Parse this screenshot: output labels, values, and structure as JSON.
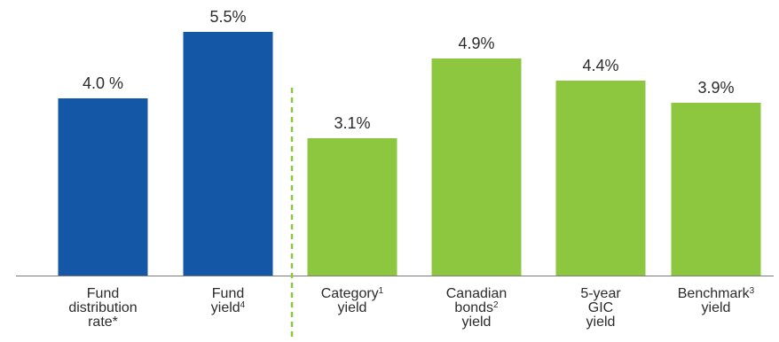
{
  "chart_data": {
    "type": "bar",
    "title": "",
    "xlabel": "",
    "ylabel": "",
    "ylim": [
      0,
      6
    ],
    "grid": false,
    "legend": "none",
    "categories": [
      {
        "lines": [
          "Fund",
          "distribution",
          "rate*"
        ],
        "sup": ""
      },
      {
        "lines": [
          "Fund",
          "yield"
        ],
        "sup": "4"
      },
      {
        "lines": [
          "Category",
          "yield"
        ],
        "sup": "1"
      },
      {
        "lines": [
          "Canadian",
          "bonds",
          "yield"
        ],
        "sup": "2"
      },
      {
        "lines": [
          "5-year",
          "GIC",
          "yield"
        ],
        "sup": ""
      },
      {
        "lines": [
          "Benchmark",
          "yield"
        ],
        "sup": "3"
      }
    ],
    "values": [
      4.0,
      5.5,
      3.1,
      4.9,
      4.4,
      3.9
    ],
    "value_labels": [
      "4.0 %",
      "5.5%",
      "3.1%",
      "4.9%",
      "4.4%",
      "3.9%"
    ],
    "bar_colors": [
      "#1457a6",
      "#1457a6",
      "#8dc63f",
      "#8dc63f",
      "#8dc63f",
      "#8dc63f"
    ],
    "separator_after_index": 1,
    "separator_color": "#8dc63f",
    "axis_color": "#7a7a7a"
  }
}
